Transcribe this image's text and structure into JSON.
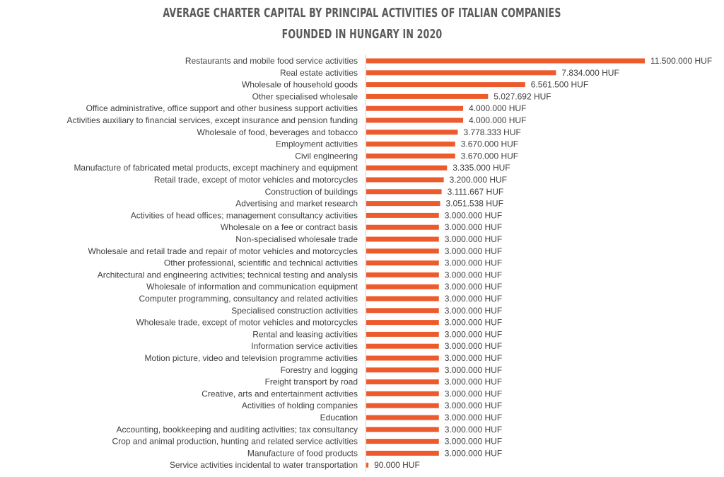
{
  "chart_data": {
    "type": "bar",
    "orientation": "horizontal",
    "title_line1": "AVERAGE CHARTER CAPITAL BY PRINCIPAL ACTIVITIES OF ITALIAN COMPANIES",
    "title_line2": "FOUNDED IN HUNGARY IN 2020",
    "unit_suffix": " HUF",
    "bar_color": "#ED5B2D",
    "grid": false,
    "categories": [
      "Restaurants and mobile food service activities",
      "Real estate activities",
      "Wholesale of household goods",
      "Other specialised wholesale",
      "Office administrative, office support and other business support activities",
      "Activities auxiliary to financial services, except insurance and pension funding",
      "Wholesale of food, beverages and tobacco",
      "Employment activities",
      "Civil engineering",
      "Manufacture of fabricated metal products, except machinery and equipment",
      "Retail trade, except of motor vehicles and motorcycles",
      "Construction of buildings",
      "Advertising and market research",
      "Activities of head offices; management consultancy activities",
      "Wholesale on a fee or contract basis",
      "Non-specialised wholesale trade",
      "Wholesale and retail trade and repair of motor vehicles and motorcycles",
      "Other professional, scientific and technical activities",
      "Architectural and engineering activities; technical testing and analysis",
      "Wholesale of information and communication equipment",
      "Computer programming, consultancy and related activities",
      "Specialised construction activities",
      "Wholesale trade, except of motor vehicles and motorcycles",
      "Rental and leasing activities",
      "Information service activities",
      "Motion picture, video and television programme activities",
      "Forestry and logging",
      "Freight transport by road",
      "Creative, arts and entertainment activities",
      "Activities of holding companies",
      "Education",
      "Accounting, bookkeeping and auditing activities; tax consultancy",
      "Crop and animal production, hunting and related service activities",
      "Manufacture of food products",
      "Service activities incidental to water transportation"
    ],
    "values": [
      11500000,
      7834000,
      6561500,
      5027692,
      4000000,
      4000000,
      3778333,
      3670000,
      3670000,
      3335000,
      3200000,
      3111667,
      3051538,
      3000000,
      3000000,
      3000000,
      3000000,
      3000000,
      3000000,
      3000000,
      3000000,
      3000000,
      3000000,
      3000000,
      3000000,
      3000000,
      3000000,
      3000000,
      3000000,
      3000000,
      3000000,
      3000000,
      3000000,
      3000000,
      90000
    ],
    "value_labels": [
      "11.500.000",
      "7.834.000",
      "6.561.500",
      "5.027.692",
      "4.000.000",
      "4.000.000",
      "3.778.333",
      "3.670.000",
      "3.670.000",
      "3.335.000",
      "3.200.000",
      "3.111.667",
      "3.051.538",
      "3.000.000",
      "3.000.000",
      "3.000.000",
      "3.000.000",
      "3.000.000",
      "3.000.000",
      "3.000.000",
      "3.000.000",
      "3.000.000",
      "3.000.000",
      "3.000.000",
      "3.000.000",
      "3.000.000",
      "3.000.000",
      "3.000.000",
      "3.000.000",
      "3.000.000",
      "3.000.000",
      "3.000.000",
      "3.000.000",
      "3.000.000",
      "90.000"
    ]
  }
}
